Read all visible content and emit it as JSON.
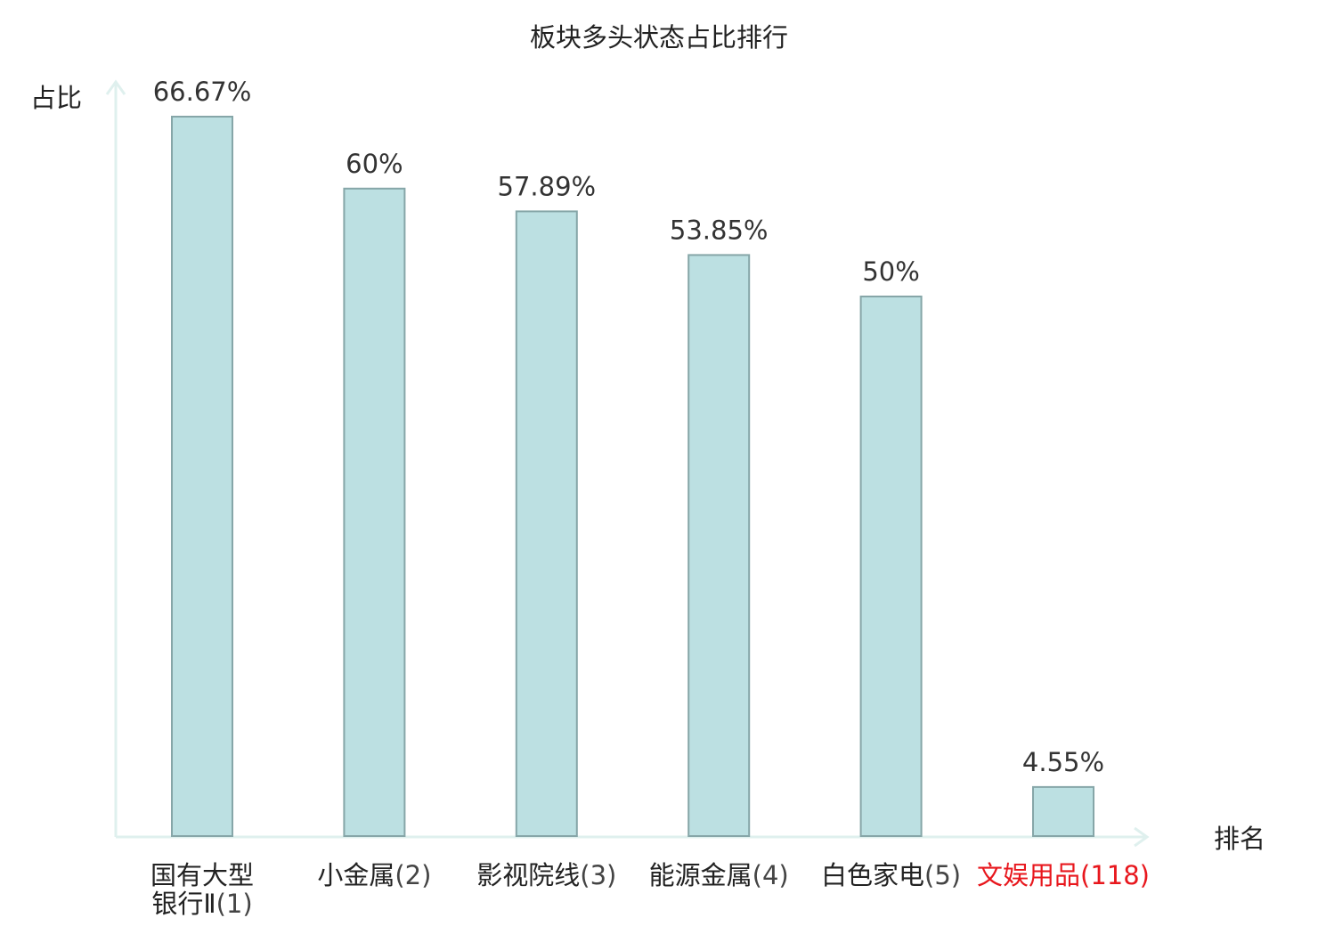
{
  "chart_data": {
    "type": "bar",
    "title": "板块多头状态占比排行",
    "ylabel": "占比",
    "xlabel": "排名",
    "categories": [
      {
        "name": "国有大型银行Ⅱ",
        "rank": "(1)",
        "lines": [
          "国有大型",
          "银行Ⅱ"
        ]
      },
      {
        "name": "小金属",
        "rank": "(2)",
        "lines": [
          "小金属"
        ]
      },
      {
        "name": "影视院线",
        "rank": "(3)",
        "lines": [
          "影视院线"
        ]
      },
      {
        "name": "能源金属",
        "rank": "(4)",
        "lines": [
          "能源金属"
        ]
      },
      {
        "name": "白色家电",
        "rank": "(5)",
        "lines": [
          "白色家电"
        ]
      },
      {
        "name": "文娱用品",
        "rank": "(118)",
        "lines": [
          "文娱用品"
        ]
      }
    ],
    "values": [
      66.67,
      60,
      57.89,
      53.85,
      50,
      4.55
    ],
    "data_labels": [
      "66.67%",
      "60%",
      "57.89%",
      "53.85%",
      "50%",
      "4.55%"
    ],
    "highlight_index": 5,
    "colors": {
      "bar_fill": "#bce0e2",
      "bar_stroke": "#86a6a8",
      "axis": "#dff0ee",
      "highlight_text": "#e8171d"
    },
    "ylim": [
      0,
      66.67
    ],
    "grid": false,
    "legend": "none"
  }
}
